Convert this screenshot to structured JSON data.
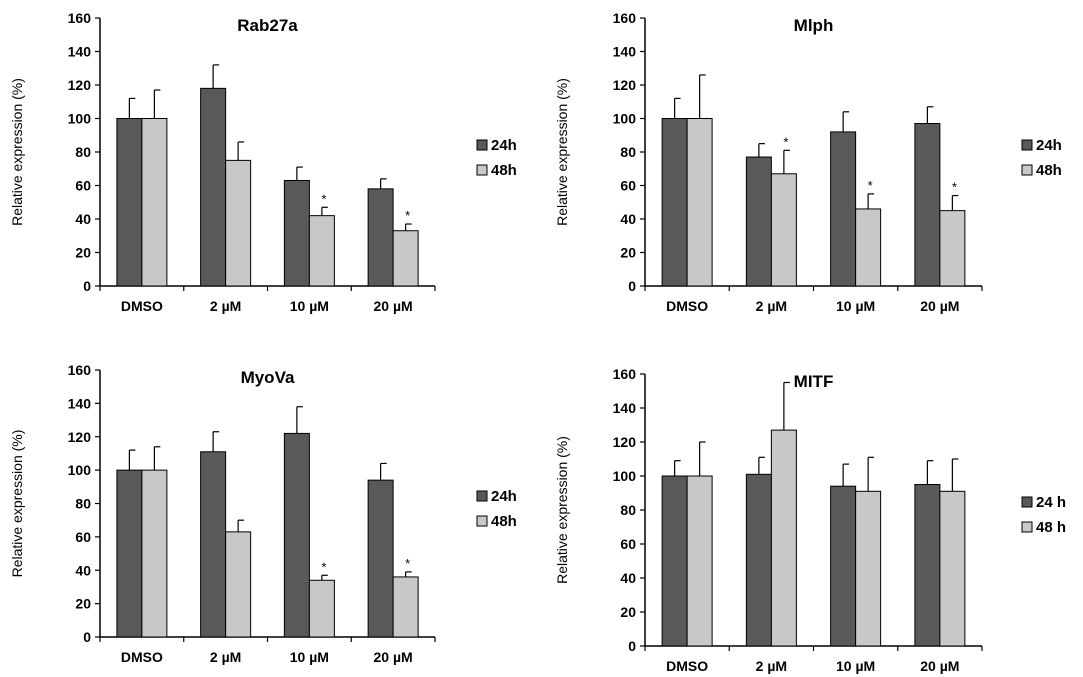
{
  "chart_data": [
    {
      "type": "bar",
      "title": "Rab27a",
      "ylabel": "Relative expression (%)",
      "xlabel": "",
      "ylim": [
        0,
        160
      ],
      "yticks": [
        0,
        20,
        40,
        60,
        80,
        100,
        120,
        140,
        160
      ],
      "categories": [
        "DMSO",
        "2 µM",
        "10 µM",
        "20 µM"
      ],
      "series": [
        {
          "name": "24h",
          "color": "#595959",
          "values": [
            100,
            118,
            63,
            58
          ],
          "errors": [
            12,
            14,
            8,
            6
          ],
          "significant": [
            false,
            false,
            false,
            false
          ]
        },
        {
          "name": "48h",
          "color": "#c8c8c8",
          "values": [
            100,
            75,
            42,
            33
          ],
          "errors": [
            17,
            11,
            5,
            4
          ],
          "significant": [
            false,
            false,
            true,
            true
          ]
        }
      ],
      "legend_position": "right",
      "significance_mark": "*"
    },
    {
      "type": "bar",
      "title": "Mlph",
      "ylabel": "Relative expression (%)",
      "xlabel": "",
      "ylim": [
        0,
        160
      ],
      "yticks": [
        0,
        20,
        40,
        60,
        80,
        100,
        120,
        140,
        160
      ],
      "categories": [
        "DMSO",
        "2 µM",
        "10 µM",
        "20 µM"
      ],
      "series": [
        {
          "name": "24h",
          "color": "#595959",
          "values": [
            100,
            77,
            92,
            97
          ],
          "errors": [
            12,
            8,
            12,
            10
          ],
          "significant": [
            false,
            false,
            false,
            false
          ]
        },
        {
          "name": "48h",
          "color": "#c8c8c8",
          "values": [
            100,
            67,
            46,
            45
          ],
          "errors": [
            26,
            14,
            9,
            9
          ],
          "significant": [
            false,
            true,
            true,
            true
          ]
        }
      ],
      "legend_position": "right",
      "significance_mark": "*"
    },
    {
      "type": "bar",
      "title": "MyoVa",
      "ylabel": "Relative expression (%)",
      "xlabel": "",
      "ylim": [
        0,
        160
      ],
      "yticks": [
        0,
        20,
        40,
        60,
        80,
        100,
        120,
        140,
        160
      ],
      "categories": [
        "DMSO",
        "2 µM",
        "10 µM",
        "20 µM"
      ],
      "series": [
        {
          "name": "24h",
          "color": "#595959",
          "values": [
            100,
            111,
            122,
            94
          ],
          "errors": [
            12,
            12,
            16,
            10
          ],
          "significant": [
            false,
            false,
            false,
            false
          ]
        },
        {
          "name": "48h",
          "color": "#c8c8c8",
          "values": [
            100,
            63,
            34,
            36
          ],
          "errors": [
            14,
            7,
            3,
            3
          ],
          "significant": [
            false,
            false,
            true,
            true
          ]
        }
      ],
      "legend_position": "right",
      "significance_mark": "*"
    },
    {
      "type": "bar",
      "title": "MITF",
      "ylabel": "Relative expression (%)",
      "xlabel": "",
      "ylim": [
        0,
        160
      ],
      "yticks": [
        0,
        20,
        40,
        60,
        80,
        100,
        120,
        140,
        160
      ],
      "categories": [
        "DMSO",
        "2 µM",
        "10 µM",
        "20 µM"
      ],
      "series": [
        {
          "name": "24 h",
          "color": "#595959",
          "values": [
            100,
            101,
            94,
            95
          ],
          "errors": [
            9,
            10,
            13,
            14
          ],
          "significant": [
            false,
            false,
            false,
            false
          ]
        },
        {
          "name": "48 h",
          "color": "#c8c8c8",
          "values": [
            100,
            127,
            91,
            91
          ],
          "errors": [
            20,
            28,
            20,
            19
          ],
          "significant": [
            false,
            false,
            false,
            false
          ]
        }
      ],
      "legend_position": "right",
      "significance_mark": "*"
    }
  ]
}
